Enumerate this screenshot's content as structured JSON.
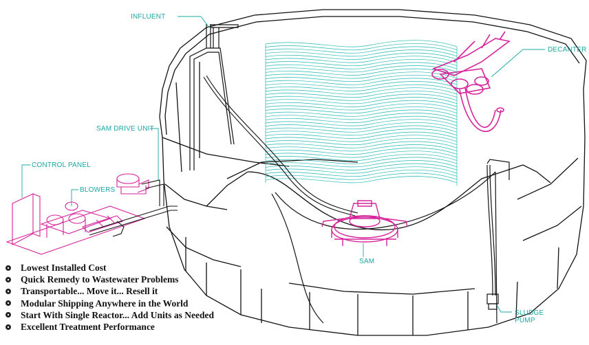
{
  "labels": {
    "influent": "INFLUENT",
    "decanter": "DECANTER",
    "sam_drive_unit": "SAM DRIVE UNIT",
    "control_panel": "CONTROL PANEL",
    "blowers": "BLOWERS",
    "sam": "SAM",
    "sludge_pump_line1": "SLUDGE",
    "sludge_pump_line2": "PUMP"
  },
  "colors": {
    "label": "#19a7a3",
    "media": "#1fb8b3",
    "equipment": "#d6229a",
    "outline": "#111111"
  },
  "features": [
    "Lowest Installed Cost",
    "Quick Remedy to Wastewater Problems",
    "Transportable... Move it... Resell it",
    "Modular Shipping Anywhere in the World",
    "Start With Single Reactor... Add Units as Needed",
    "Excellent Treatment Performance"
  ]
}
